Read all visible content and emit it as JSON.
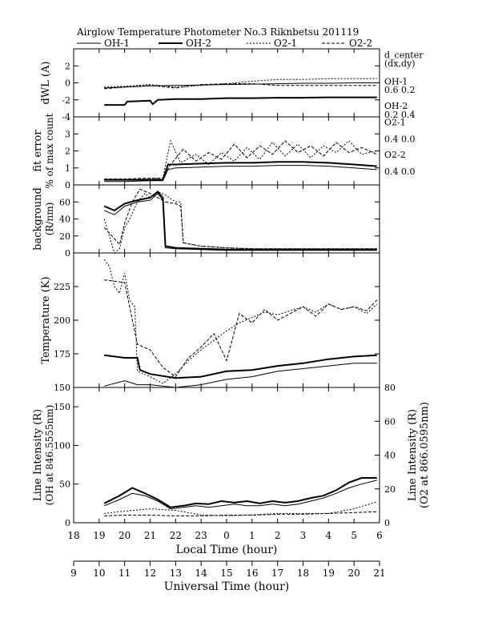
{
  "title": "Airglow Temperature Photometer No.3  Riknbetsu    201119",
  "legend": [
    {
      "name": "OH-1",
      "dash": "",
      "width": 1.0
    },
    {
      "name": "OH-2",
      "dash": "",
      "width": 2.0
    },
    {
      "name": "O2-1",
      "dash": "2,2",
      "width": 1.0
    },
    {
      "name": "O2-2",
      "dash": "4,2",
      "width": 1.0
    }
  ],
  "right_annotations": [
    {
      "text": "d_center",
      "panel": 0,
      "at": 3.3
    },
    {
      "text": "(dx,dy)",
      "panel": 0,
      "at": 2.3
    },
    {
      "text": "OH-1",
      "panel": 0,
      "at": 0.2
    },
    {
      "text": "0.6   0.2",
      "panel": 0,
      "at": -0.8
    },
    {
      "text": "OH-2",
      "panel": 0,
      "at": -2.7
    },
    {
      "text": "0.2   0.4",
      "panel": 0,
      "at": -3.7
    },
    {
      "text": "O2-1",
      "panel": 1,
      "at": 3.7
    },
    {
      "text": "0.4   0.0",
      "panel": 1,
      "at": 2.7
    },
    {
      "text": "O2-2",
      "panel": 1,
      "at": 1.8
    },
    {
      "text": "0.4   0.0",
      "panel": 1,
      "at": 0.8
    }
  ],
  "chart_data": [
    {
      "type": "line",
      "ylabel": "dWL (A)",
      "ylim": [
        -4,
        4
      ],
      "yticks": [
        -4,
        -2,
        0,
        2
      ],
      "series": [
        {
          "name": "OH-1",
          "x": [
            19.2,
            20,
            21,
            22,
            23,
            24,
            25,
            26,
            27,
            28,
            29,
            29.9
          ],
          "y": [
            -0.6,
            -0.5,
            -0.35,
            -0.3,
            -0.25,
            -0.2,
            -0.15,
            -0.1,
            -0.05,
            -0.05,
            0.0,
            0.0
          ]
        },
        {
          "name": "OH-2",
          "x": [
            19.2,
            20.0,
            20.1,
            21.0,
            21.1,
            21.3,
            22,
            23,
            24,
            25,
            26,
            27,
            28,
            29,
            29.9
          ],
          "y": [
            -2.6,
            -2.6,
            -2.2,
            -2.1,
            -2.5,
            -2.0,
            -1.9,
            -1.9,
            -1.8,
            -1.8,
            -1.75,
            -1.75,
            -1.7,
            -1.7,
            -1.7
          ]
        },
        {
          "name": "O2-1",
          "x": [
            19.2,
            20,
            21,
            22,
            23,
            24,
            25,
            26,
            27,
            28,
            29,
            29.9
          ],
          "y": [
            -0.5,
            -0.4,
            -0.2,
            -0.5,
            -0.3,
            -0.1,
            0.2,
            0.4,
            0.4,
            0.5,
            0.5,
            0.5
          ]
        },
        {
          "name": "O2-2",
          "x": [
            19.2,
            20,
            21,
            22,
            23,
            24,
            25,
            26,
            27,
            28,
            29,
            29.9
          ],
          "y": [
            -0.7,
            -0.5,
            -0.3,
            -0.6,
            -0.2,
            -0.1,
            -0.1,
            -0.3,
            -0.3,
            -0.3,
            -0.3,
            -0.3
          ]
        }
      ]
    },
    {
      "type": "line",
      "ylabel": "fit error",
      "ylabel2": "% of max count",
      "ylim": [
        0,
        4
      ],
      "yticks": [
        0,
        1,
        2,
        3
      ],
      "series": [
        {
          "name": "OH-1",
          "x": [
            19.2,
            20,
            21,
            21.5,
            21.7,
            22,
            23,
            24,
            25,
            26,
            27,
            28,
            29,
            29.9
          ],
          "y": [
            0.2,
            0.2,
            0.25,
            0.25,
            0.9,
            1.0,
            1.05,
            1.1,
            1.1,
            1.15,
            1.15,
            1.1,
            1.0,
            0.9
          ]
        },
        {
          "name": "OH-2",
          "x": [
            19.2,
            20,
            21,
            21.5,
            21.7,
            22,
            23,
            24,
            25,
            26,
            27,
            28,
            29,
            29.9
          ],
          "y": [
            0.3,
            0.3,
            0.3,
            0.3,
            1.2,
            1.2,
            1.25,
            1.3,
            1.3,
            1.35,
            1.35,
            1.3,
            1.2,
            1.1
          ]
        },
        {
          "name": "O2-1",
          "x": [
            19.2,
            20,
            21,
            21.5,
            21.8,
            22.2,
            22.8,
            23.3,
            23.8,
            24.3,
            24.8,
            25.3,
            25.8,
            26.3,
            26.8,
            27.3,
            27.8,
            28.3,
            28.8,
            29.3,
            29.9
          ],
          "y": [
            0.3,
            0.3,
            0.35,
            0.4,
            2.6,
            1.3,
            1.8,
            1.2,
            1.9,
            1.4,
            2.2,
            1.5,
            2.5,
            1.7,
            2.4,
            1.6,
            2.3,
            1.9,
            2.6,
            1.8,
            2.0
          ]
        },
        {
          "name": "O2-2",
          "x": [
            19.2,
            20,
            21,
            21.5,
            21.8,
            22.3,
            22.8,
            23.3,
            23.8,
            24.3,
            24.8,
            25.3,
            25.8,
            26.3,
            26.8,
            27.3,
            27.8,
            28.3,
            28.8,
            29.3,
            29.9
          ],
          "y": [
            0.35,
            0.35,
            0.4,
            0.4,
            1.2,
            2.1,
            1.4,
            1.9,
            1.5,
            2.4,
            1.6,
            2.3,
            1.8,
            2.6,
            1.9,
            2.3,
            1.7,
            2.5,
            1.9,
            2.2,
            1.8
          ]
        }
      ]
    },
    {
      "type": "line",
      "ylabel": "background",
      "ylabel2": "(R/nm)",
      "ylim": [
        0,
        80
      ],
      "yticks": [
        0,
        20,
        40,
        60
      ],
      "series": [
        {
          "name": "OH-1",
          "x": [
            19.2,
            19.6,
            20.0,
            20.5,
            21.0,
            21.3,
            21.5,
            21.6,
            22,
            23,
            24,
            25,
            26,
            27,
            28,
            29,
            29.9
          ],
          "y": [
            50,
            45,
            55,
            60,
            62,
            70,
            62,
            6,
            5,
            4,
            3,
            3,
            3,
            3,
            3,
            3,
            3
          ]
        },
        {
          "name": "OH-2",
          "x": [
            19.2,
            19.6,
            20.0,
            20.5,
            21.0,
            21.3,
            21.5,
            21.6,
            22,
            23,
            24,
            25,
            26,
            27,
            28,
            29,
            29.9
          ],
          "y": [
            55,
            50,
            58,
            62,
            65,
            72,
            65,
            8,
            6,
            5,
            4,
            4,
            4,
            4,
            4,
            4,
            4
          ]
        },
        {
          "name": "O2-1",
          "x": [
            19.2,
            19.4,
            19.6,
            19.8,
            20.0,
            20.2,
            20.5,
            20.8,
            21.0,
            21.3,
            21.6,
            22.0,
            22.2,
            22.3,
            23,
            24,
            25,
            26,
            27,
            28,
            29,
            29.9
          ],
          "y": [
            40,
            20,
            0,
            5,
            30,
            40,
            60,
            70,
            65,
            72,
            68,
            60,
            60,
            12,
            8,
            6,
            5,
            5,
            5,
            5,
            5,
            5
          ]
        },
        {
          "name": "O2-2",
          "x": [
            19.2,
            19.5,
            19.8,
            20.0,
            20.3,
            20.6,
            21.0,
            21.3,
            21.6,
            22.0,
            22.2,
            22.3,
            23,
            24,
            25,
            26,
            27,
            28,
            29,
            29.9
          ],
          "y": [
            30,
            20,
            10,
            35,
            60,
            75,
            70,
            65,
            60,
            58,
            55,
            12,
            8,
            6,
            5,
            5,
            5,
            5,
            5,
            5
          ]
        }
      ]
    },
    {
      "type": "line",
      "ylabel": "Temperature (K)",
      "ylim": [
        150,
        250
      ],
      "yticks": [
        150,
        175,
        200,
        225
      ],
      "series": [
        {
          "name": "OH-1",
          "x": [
            19.2,
            20,
            20.5,
            21,
            22,
            23,
            24,
            25,
            26,
            27,
            28,
            29,
            29.9
          ],
          "y": [
            151,
            155,
            152,
            152,
            150,
            152,
            156,
            158,
            162,
            164,
            166,
            168,
            168
          ]
        },
        {
          "name": "OH-2",
          "x": [
            19.2,
            20,
            20.5,
            20.6,
            21,
            22,
            23,
            24,
            25,
            26,
            27,
            28,
            29,
            29.9
          ],
          "y": [
            174,
            172,
            172,
            163,
            160,
            157,
            158,
            162,
            163,
            166,
            168,
            171,
            173,
            174
          ]
        },
        {
          "name": "O2-1",
          "x": [
            19.2,
            19.4,
            19.6,
            19.8,
            20.0,
            20.2,
            20.4,
            20.5,
            21.0,
            21.5,
            22.0,
            22.5,
            23.0,
            23.5,
            24.0,
            24.5,
            25.0,
            25.5,
            26.0,
            26.5,
            27.0,
            27.5,
            28.0,
            28.5,
            29.0,
            29.5,
            29.9
          ],
          "y": [
            245,
            240,
            225,
            220,
            235,
            215,
            210,
            162,
            158,
            153,
            160,
            170,
            178,
            185,
            192,
            198,
            202,
            206,
            204,
            207,
            210,
            206,
            212,
            208,
            210,
            205,
            212
          ]
        },
        {
          "name": "O2-2",
          "x": [
            19.2,
            20.0,
            20.5,
            21.0,
            21.5,
            22.0,
            22.5,
            23.0,
            23.5,
            24.0,
            24.5,
            25.0,
            25.5,
            26.0,
            26.5,
            27.0,
            27.5,
            28.0,
            28.5,
            29.0,
            29.5,
            29.9
          ],
          "y": [
            230,
            228,
            182,
            178,
            165,
            158,
            172,
            180,
            190,
            170,
            205,
            198,
            208,
            200,
            205,
            210,
            203,
            212,
            208,
            210,
            207,
            215
          ]
        }
      ]
    },
    {
      "type": "line",
      "ylabel": "Line Intensity (R)",
      "ylabel2": "(OH at 846.5555nm)",
      "ylim": [
        0,
        175
      ],
      "yticks": [
        0,
        50,
        100,
        150
      ],
      "y2label": "Line Intensity (R)",
      "y2label2": "(O2 at 866.0595nm)",
      "y2lim": [
        0,
        80
      ],
      "y2ticks": [
        0,
        20,
        40,
        60,
        80
      ],
      "series": [
        {
          "name": "OH-1",
          "x": [
            19.2,
            19.8,
            20.3,
            20.8,
            21.3,
            21.8,
            22.3,
            22.8,
            23.3,
            23.8,
            24.3,
            24.8,
            25.3,
            25.8,
            26.3,
            26.8,
            27.3,
            27.8,
            28.3,
            28.8,
            29.3,
            29.9
          ],
          "y": [
            22,
            30,
            38,
            35,
            28,
            18,
            20,
            22,
            20,
            22,
            24,
            22,
            22,
            24,
            22,
            24,
            28,
            32,
            38,
            45,
            50,
            55
          ]
        },
        {
          "name": "OH-2",
          "x": [
            19.2,
            19.8,
            20.3,
            20.8,
            21.3,
            21.8,
            22.3,
            22.8,
            23.3,
            23.8,
            24.3,
            24.8,
            25.3,
            25.8,
            26.3,
            26.8,
            27.3,
            27.8,
            28.3,
            28.8,
            29.3,
            29.9
          ],
          "y": [
            25,
            35,
            45,
            38,
            30,
            20,
            22,
            25,
            24,
            28,
            26,
            28,
            25,
            28,
            26,
            28,
            32,
            35,
            42,
            52,
            58,
            58
          ]
        },
        {
          "name": "O2-1",
          "x": [
            19.2,
            20,
            21,
            22,
            23,
            24,
            25,
            26,
            27,
            28,
            29,
            29.9
          ],
          "y": [
            12,
            15,
            18,
            16,
            10,
            9,
            10,
            12,
            12,
            12,
            18,
            27
          ]
        },
        {
          "name": "O2-2",
          "x": [
            19.2,
            20,
            21,
            22,
            23,
            24,
            25,
            26,
            27,
            28,
            29,
            29.9
          ],
          "y": [
            4,
            4.5,
            4.5,
            4,
            4,
            4.5,
            4.5,
            5,
            5,
            5.5,
            6,
            6.5
          ],
          "axis": "right"
        }
      ]
    },
    {
      "type": "axis",
      "xlabel": "Local Time (hour)",
      "ticks": [
        18,
        19,
        20,
        21,
        22,
        23,
        24,
        25,
        26,
        27,
        28,
        29,
        30
      ],
      "tick_labels": [
        "18",
        "19",
        "20",
        "21",
        "22",
        "23",
        "0",
        "1",
        "2",
        "3",
        "4",
        "5",
        "6"
      ]
    },
    {
      "type": "axis",
      "xlabel": "Universal Time (hour)",
      "ticks": [
        9,
        10,
        11,
        12,
        13,
        14,
        15,
        16,
        17,
        18,
        19,
        20,
        21
      ],
      "tick_labels": [
        "9",
        "10",
        "11",
        "12",
        "13",
        "14",
        "15",
        "16",
        "17",
        "18",
        "19",
        "20",
        "21"
      ]
    }
  ]
}
